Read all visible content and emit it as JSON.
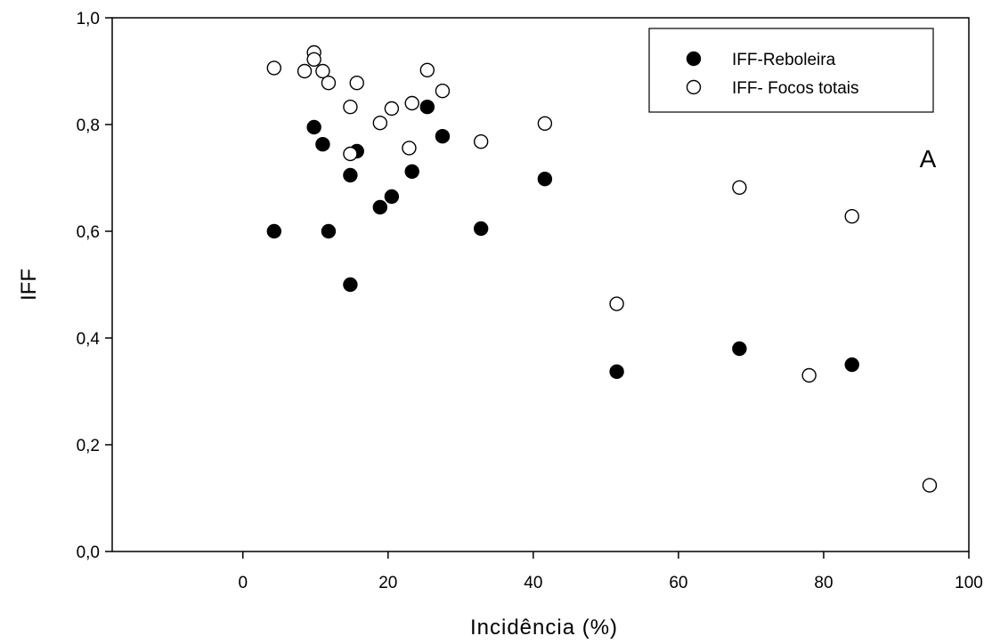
{
  "chart_data": {
    "type": "scatter",
    "title": "",
    "xlabel": "Incidência (%)",
    "ylabel": "IFF",
    "annotation": "A",
    "xlim": [
      -18,
      100
    ],
    "ylim": [
      0.0,
      1.0
    ],
    "xticks": [
      0,
      20,
      40,
      60,
      80,
      100
    ],
    "xtick_labels": [
      "0",
      "20",
      "40",
      "60",
      "80",
      "100"
    ],
    "yticks": [
      0.0,
      0.2,
      0.4,
      0.6,
      0.8,
      1.0
    ],
    "ytick_labels": [
      "0,0",
      "0,2",
      "0,4",
      "0,6",
      "0,8",
      "1,0"
    ],
    "grid": false,
    "legend_position": "top-right",
    "series": [
      {
        "name": "IFF-Reboleira",
        "marker": "filled-circle",
        "color": "#000000",
        "points": [
          [
            4.3,
            0.6
          ],
          [
            9.8,
            0.795
          ],
          [
            11.0,
            0.763
          ],
          [
            11.8,
            0.6
          ],
          [
            14.8,
            0.705
          ],
          [
            14.8,
            0.5
          ],
          [
            15.7,
            0.75
          ],
          [
            18.9,
            0.645
          ],
          [
            20.5,
            0.665
          ],
          [
            23.3,
            0.712
          ],
          [
            25.4,
            0.833
          ],
          [
            27.5,
            0.778
          ],
          [
            32.8,
            0.605
          ],
          [
            41.6,
            0.698
          ],
          [
            51.5,
            0.337
          ],
          [
            68.4,
            0.38
          ],
          [
            83.9,
            0.35
          ]
        ]
      },
      {
        "name": "IFF- Focos totais",
        "marker": "open-circle",
        "color": "#000000",
        "points": [
          [
            4.3,
            0.906
          ],
          [
            8.5,
            0.9
          ],
          [
            9.8,
            0.935
          ],
          [
            9.8,
            0.922
          ],
          [
            11.0,
            0.9
          ],
          [
            11.8,
            0.878
          ],
          [
            14.8,
            0.833
          ],
          [
            14.8,
            0.745
          ],
          [
            15.7,
            0.878
          ],
          [
            18.9,
            0.803
          ],
          [
            20.5,
            0.83
          ],
          [
            22.9,
            0.756
          ],
          [
            23.3,
            0.84
          ],
          [
            25.4,
            0.902
          ],
          [
            27.5,
            0.863
          ],
          [
            32.8,
            0.768
          ],
          [
            41.6,
            0.802
          ],
          [
            51.5,
            0.464
          ],
          [
            68.4,
            0.682
          ],
          [
            78.0,
            0.33
          ],
          [
            83.9,
            0.628
          ],
          [
            94.6,
            0.124
          ]
        ]
      }
    ]
  }
}
